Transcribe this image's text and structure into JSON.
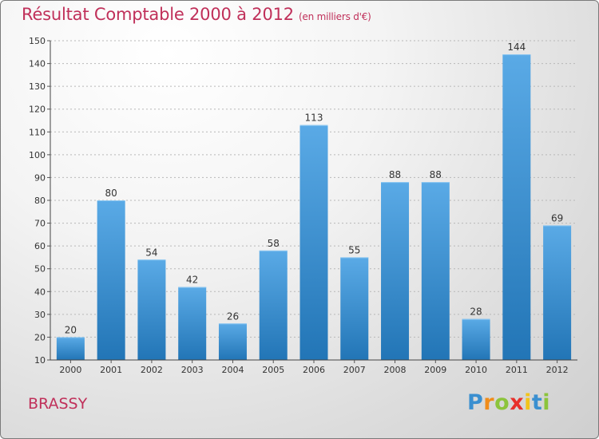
{
  "header": {
    "title": "Résultat Comptable 2000 à 2012",
    "unit": "(en milliers d'€)"
  },
  "footer": {
    "commune": "BRASSY",
    "logo_letters": [
      "P",
      "r",
      "o",
      "x",
      "i",
      "t",
      "i"
    ]
  },
  "colors": {
    "title": "#c0305a",
    "bar_top": "#5aaae6",
    "bar_bottom": "#2275b6",
    "logo": [
      "#3a8fd0",
      "#f08c1a",
      "#8cc43c",
      "#e8302a",
      "#f2c41a",
      "#3a8fd0",
      "#8cc43c"
    ]
  },
  "chart_data": {
    "type": "bar",
    "title": "Résultat Comptable 2000 à 2012",
    "subtitle": "(en milliers d'€)",
    "xlabel": "",
    "ylabel": "",
    "categories": [
      "2000",
      "2001",
      "2002",
      "2003",
      "2004",
      "2005",
      "2006",
      "2007",
      "2008",
      "2009",
      "2010",
      "2011",
      "2012"
    ],
    "values": [
      20,
      80,
      54,
      42,
      26,
      58,
      113,
      55,
      88,
      88,
      28,
      144,
      69
    ],
    "ylim": [
      10,
      150
    ],
    "yticks": [
      10,
      20,
      30,
      40,
      50,
      60,
      70,
      80,
      90,
      100,
      110,
      120,
      130,
      140,
      150
    ],
    "grid": true,
    "legend": "none"
  }
}
